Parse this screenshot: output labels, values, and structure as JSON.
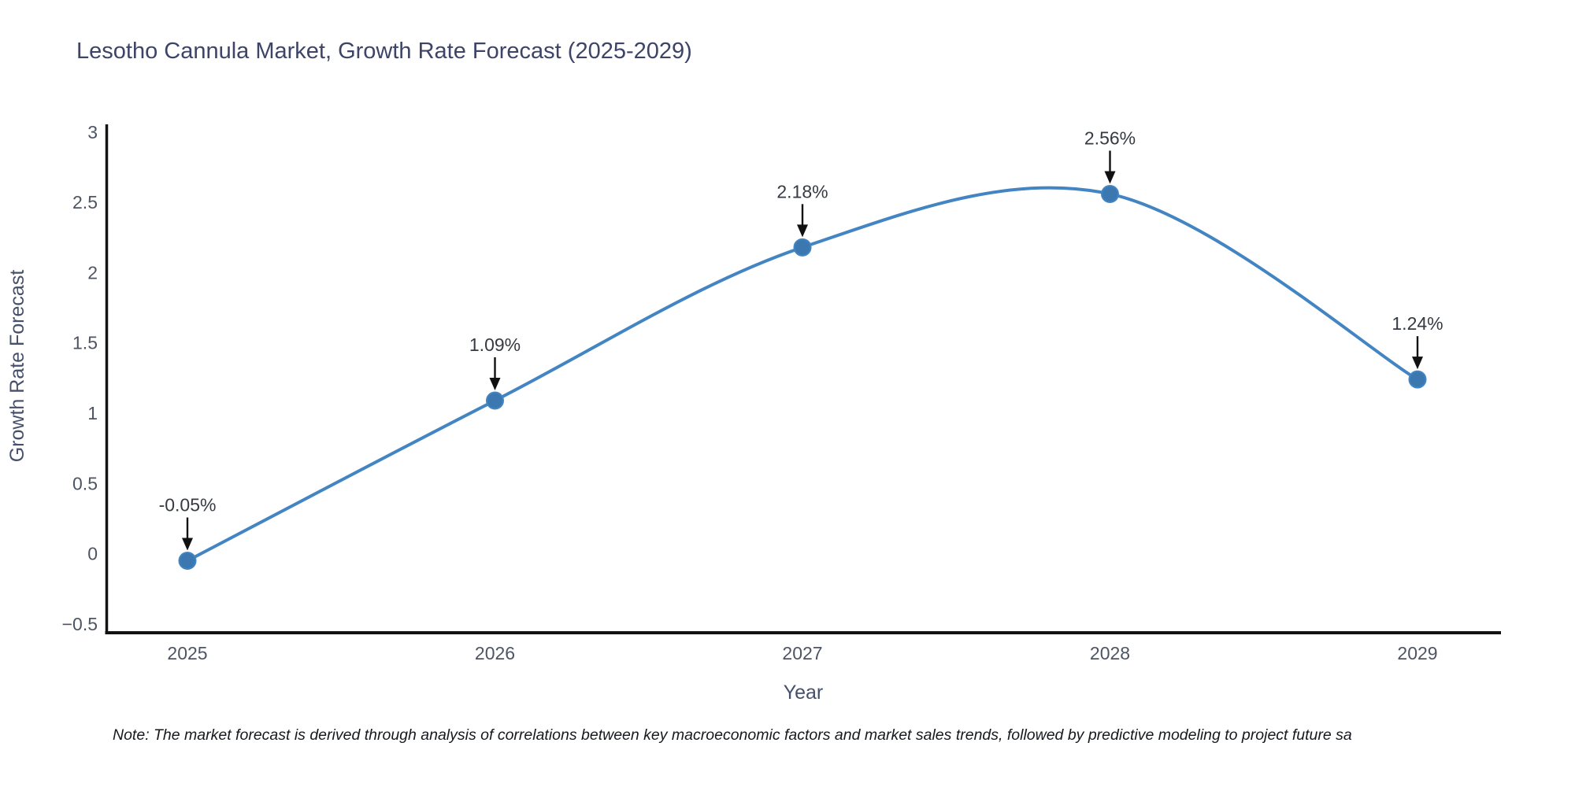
{
  "chart_data": {
    "type": "line",
    "line_shape": "spline",
    "title": "Lesotho Cannula Market, Growth Rate Forecast (2025-2029)",
    "xlabel": "Year",
    "ylabel": "Growth Rate Forecast",
    "x": [
      "2025",
      "2026",
      "2027",
      "2028",
      "2029"
    ],
    "values": [
      -0.05,
      1.09,
      2.18,
      2.56,
      1.24
    ],
    "point_labels": [
      "-0.05%",
      "1.09%",
      "2.18%",
      "2.56%",
      "1.24%"
    ],
    "ytick_values": [
      3,
      2.5,
      2,
      1.5,
      1,
      0.5,
      0,
      -0.5
    ],
    "ytick_labels": [
      "3",
      "2.5",
      "2",
      "1.5",
      "1",
      "0.5",
      "0",
      "−0.5"
    ],
    "ylim": [
      -0.5,
      3
    ],
    "grid": false,
    "legend": "none",
    "colors": {
      "line": "#4285c2",
      "marker": "#3c78b0",
      "axis": "#121212",
      "annotation_text": "#363a42",
      "title_text": "#3d4468",
      "background": "#ffffff"
    },
    "note": "Note: The market forecast is derived through analysis of correlations between key macroeconomic factors and market sales trends, followed by predictive modeling to project future sa"
  }
}
